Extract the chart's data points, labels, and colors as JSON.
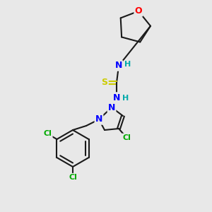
{
  "background_color": "#e8e8e8",
  "bond_color": "#1a1a1a",
  "atom_colors": {
    "N": "#0000ff",
    "O": "#ff0000",
    "S": "#cccc00",
    "Cl": "#00aa00",
    "C": "#1a1a1a",
    "H": "#00aaaa"
  },
  "figsize": [
    3.0,
    3.0
  ],
  "dpi": 100
}
